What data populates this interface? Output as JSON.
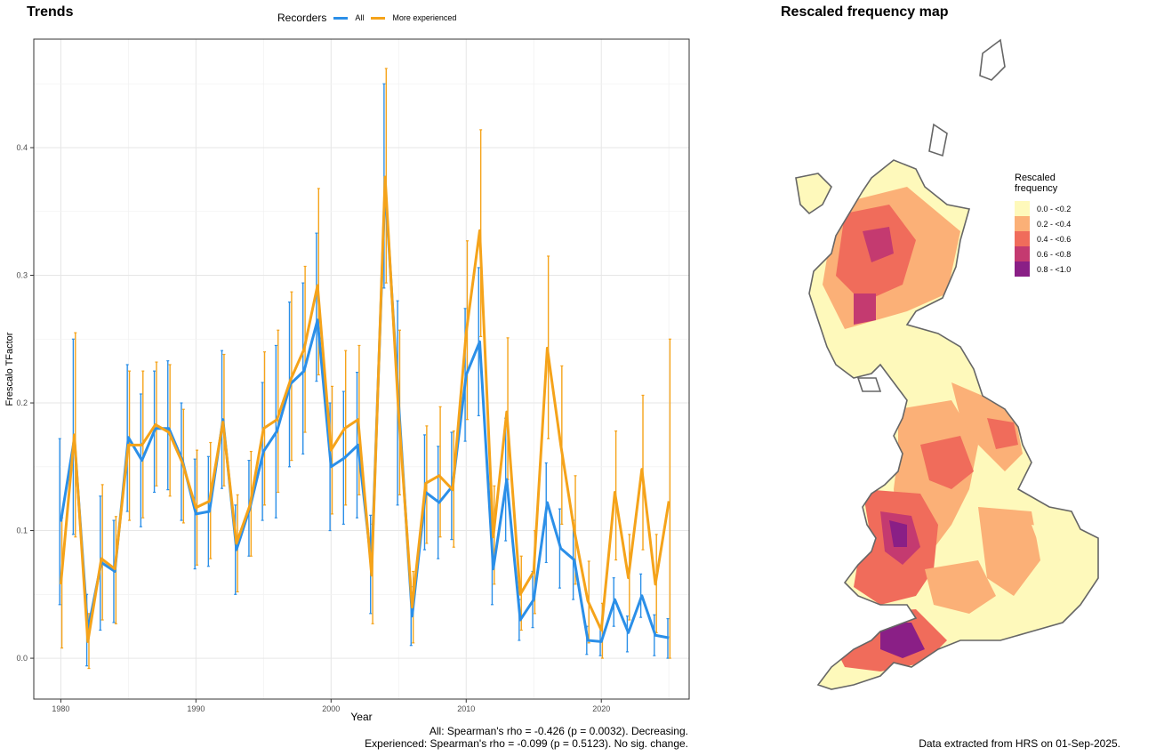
{
  "trends_title": "Trends",
  "map_title": "Rescaled frequency map",
  "legend": {
    "title": "Recorders",
    "items": [
      {
        "label": "All",
        "color": "#2b8fe8"
      },
      {
        "label": "More experienced",
        "color": "#f5a31a"
      }
    ]
  },
  "stats": {
    "all": "All: Spearman's rho = -0.426 (p = 0.0032). Decreasing.",
    "experienced": "Experienced: Spearman's rho = -0.099 (p = 0.5123). No sig. change."
  },
  "data_note": "Data extracted from HRS on 01-Sep-2025.",
  "map_legend": {
    "title": "Rescaled frequency",
    "items": [
      {
        "label": "0.0 - <0.2",
        "color": "#fef9bb"
      },
      {
        "label": "0.2 - <0.4",
        "color": "#fbb077"
      },
      {
        "label": "0.4 - <0.6",
        "color": "#f06c5b"
      },
      {
        "label": "0.6 - <0.8",
        "color": "#c43a70"
      },
      {
        "label": "0.8 - <1.0",
        "color": "#8a1f86"
      }
    ]
  },
  "chart_data": {
    "type": "line",
    "xlabel": "Year",
    "ylabel": "Frescalo TFactor",
    "xlim": [
      1978,
      2026.5
    ],
    "ylim": [
      -0.032,
      0.485
    ],
    "xticks": [
      1980,
      1990,
      2000,
      2010,
      2020
    ],
    "yticks": [
      0.0,
      0.1,
      0.2,
      0.3,
      0.4
    ],
    "ytick_labels": [
      "0.0",
      "0.1",
      "0.2",
      "0.3",
      "0.4"
    ],
    "grid": true,
    "legend_position": "top",
    "x": [
      1980,
      1981,
      1982,
      1983,
      1984,
      1985,
      1986,
      1987,
      1988,
      1989,
      1990,
      1991,
      1992,
      1993,
      1994,
      1995,
      1996,
      1997,
      1998,
      1999,
      2000,
      2001,
      2002,
      2003,
      2004,
      2005,
      2006,
      2007,
      2008,
      2009,
      2010,
      2011,
      2012,
      2013,
      2014,
      2015,
      2016,
      2017,
      2018,
      2019,
      2020,
      2021,
      2022,
      2023,
      2024,
      2025
    ],
    "series": [
      {
        "name": "All",
        "color": "#2b8fe8",
        "values": [
          0.107,
          0.172,
          0.022,
          0.075,
          0.068,
          0.173,
          0.155,
          0.18,
          0.18,
          0.155,
          0.113,
          0.115,
          0.187,
          0.085,
          0.118,
          0.162,
          0.178,
          0.215,
          0.225,
          0.265,
          0.15,
          0.157,
          0.167,
          0.072,
          0.37,
          0.2,
          0.033,
          0.13,
          0.122,
          0.135,
          0.222,
          0.248,
          0.07,
          0.14,
          0.03,
          0.046,
          0.122,
          0.086,
          0.077,
          0.014,
          0.013,
          0.046,
          0.02,
          0.049,
          0.018,
          0.016
        ],
        "low": [
          0.042,
          0.097,
          -0.006,
          0.022,
          0.028,
          0.115,
          0.103,
          0.13,
          0.132,
          0.108,
          0.07,
          0.072,
          0.133,
          0.05,
          0.08,
          0.108,
          0.11,
          0.15,
          0.16,
          0.217,
          0.1,
          0.105,
          0.11,
          0.035,
          0.29,
          0.12,
          0.01,
          0.085,
          0.078,
          0.093,
          0.17,
          0.19,
          0.042,
          0.092,
          0.014,
          0.024,
          0.075,
          0.055,
          0.046,
          0.003,
          0.002,
          0.025,
          0.005,
          0.032,
          0.002,
          0.0
        ],
        "high": [
          0.172,
          0.25,
          0.05,
          0.127,
          0.108,
          0.23,
          0.207,
          0.225,
          0.233,
          0.2,
          0.156,
          0.158,
          0.241,
          0.12,
          0.155,
          0.216,
          0.245,
          0.279,
          0.294,
          0.333,
          0.2,
          0.209,
          0.224,
          0.112,
          0.45,
          0.28,
          0.056,
          0.175,
          0.166,
          0.177,
          0.274,
          0.306,
          0.098,
          0.188,
          0.046,
          0.068,
          0.153,
          0.117,
          0.108,
          0.025,
          0.024,
          0.063,
          0.033,
          0.066,
          0.034,
          0.031
        ]
      },
      {
        "name": "More experienced",
        "color": "#f5a31a",
        "values": [
          0.058,
          0.175,
          0.013,
          0.078,
          0.07,
          0.167,
          0.167,
          0.183,
          0.177,
          0.153,
          0.118,
          0.123,
          0.185,
          0.09,
          0.12,
          0.18,
          0.187,
          0.218,
          0.242,
          0.292,
          0.163,
          0.18,
          0.187,
          0.065,
          0.377,
          0.192,
          0.04,
          0.137,
          0.143,
          0.132,
          0.255,
          0.335,
          0.095,
          0.193,
          0.05,
          0.068,
          0.243,
          0.167,
          0.1,
          0.045,
          0.022,
          0.13,
          0.063,
          0.148,
          0.058,
          0.123
        ],
        "low": [
          0.008,
          0.095,
          -0.008,
          0.03,
          0.027,
          0.108,
          0.11,
          0.135,
          0.127,
          0.106,
          0.073,
          0.078,
          0.135,
          0.052,
          0.08,
          0.12,
          0.13,
          0.155,
          0.177,
          0.222,
          0.113,
          0.12,
          0.128,
          0.027,
          0.294,
          0.128,
          0.012,
          0.09,
          0.095,
          0.087,
          0.187,
          0.252,
          0.058,
          0.14,
          0.022,
          0.035,
          0.172,
          0.105,
          0.058,
          0.012,
          0.0,
          0.077,
          0.03,
          0.085,
          0.02,
          0.0
        ],
        "high": [
          0.11,
          0.255,
          0.035,
          0.136,
          0.111,
          0.225,
          0.225,
          0.232,
          0.23,
          0.195,
          0.163,
          0.169,
          0.238,
          0.128,
          0.162,
          0.24,
          0.257,
          0.287,
          0.307,
          0.368,
          0.213,
          0.241,
          0.245,
          0.105,
          0.462,
          0.257,
          0.068,
          0.182,
          0.197,
          0.178,
          0.327,
          0.414,
          0.135,
          0.251,
          0.08,
          0.1,
          0.315,
          0.229,
          0.143,
          0.076,
          0.043,
          0.178,
          0.097,
          0.206,
          0.097,
          0.25
        ]
      }
    ]
  }
}
